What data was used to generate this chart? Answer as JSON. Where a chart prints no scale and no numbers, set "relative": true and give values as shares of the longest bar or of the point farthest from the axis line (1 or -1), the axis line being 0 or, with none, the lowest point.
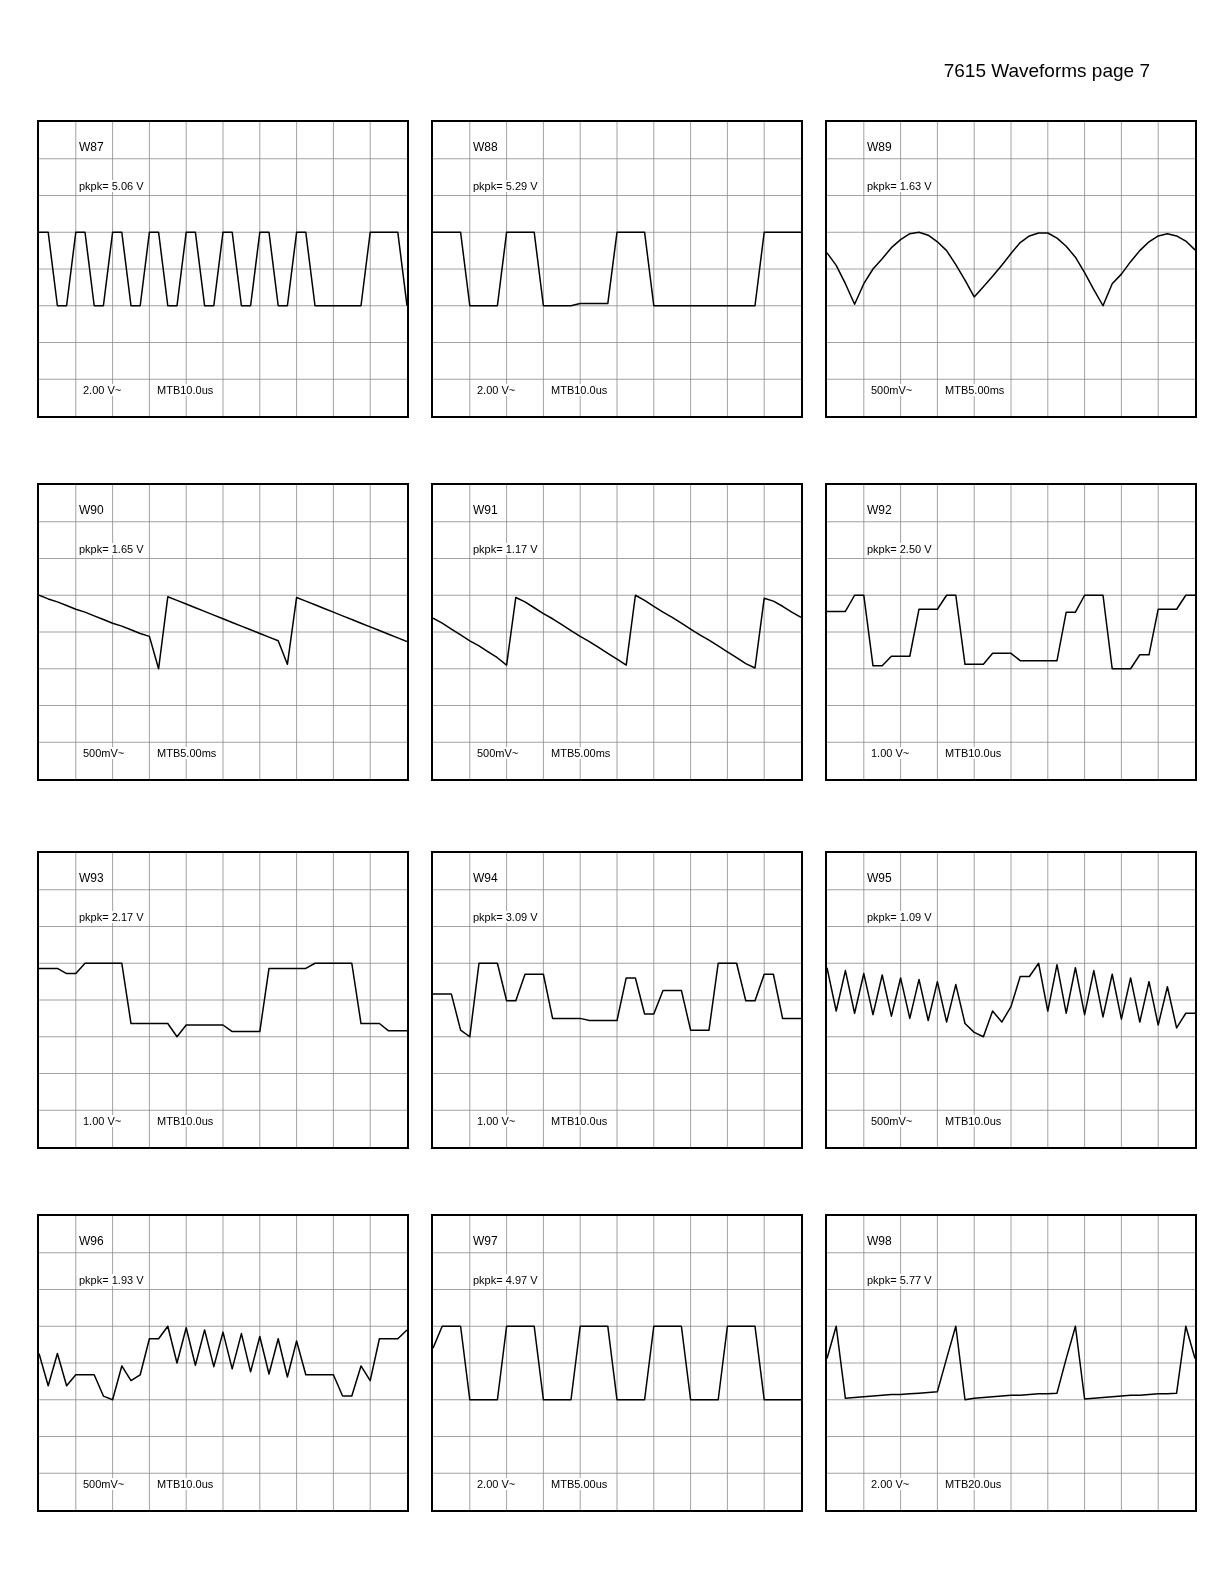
{
  "chart_data": [
    {
      "type": "line",
      "title": "W87",
      "annotations": [
        "pkpk= 5.06 V",
        "2.00 V~",
        "MTB10.0us"
      ],
      "relative": true,
      "grid": true,
      "tick_labels": false,
      "color": "#000000",
      "categories": [
        null,
        null,
        null,
        null,
        null,
        null,
        null,
        null,
        null,
        null,
        null,
        null,
        null,
        null,
        null,
        null,
        null,
        null,
        null,
        null,
        null,
        null,
        null,
        null,
        null,
        null,
        null,
        null,
        null,
        null,
        null,
        null,
        null,
        null,
        null,
        null,
        null,
        null,
        null,
        null,
        null
      ],
      "values": [
        1,
        1,
        0,
        0,
        1,
        1,
        0,
        0,
        1,
        1,
        0,
        0,
        1,
        1,
        0,
        0,
        1,
        1,
        0,
        0,
        1,
        1,
        0,
        0,
        1,
        1,
        0,
        0,
        1,
        1,
        0,
        0,
        0,
        0,
        0,
        0,
        1,
        1,
        1,
        1,
        0
      ]
    },
    {
      "type": "line",
      "title": "W88",
      "annotations": [
        "pkpk= 5.29 V",
        "2.00 V~",
        "MTB10.0us"
      ],
      "relative": true,
      "grid": true,
      "tick_labels": false,
      "color": "#000000",
      "categories": [
        null,
        null,
        null,
        null,
        null,
        null,
        null,
        null,
        null,
        null,
        null,
        null,
        null,
        null,
        null,
        null,
        null,
        null,
        null,
        null,
        null,
        null,
        null,
        null,
        null,
        null,
        null,
        null,
        null,
        null,
        null,
        null,
        null,
        null,
        null,
        null,
        null,
        null,
        null,
        null,
        null
      ],
      "values": [
        1,
        1,
        1,
        1,
        0,
        0,
        0,
        0,
        1,
        1,
        1,
        1,
        0,
        0,
        0,
        0,
        0.03,
        0.03,
        0.03,
        0.03,
        1,
        1,
        1,
        1,
        0,
        0,
        0,
        0,
        0,
        0,
        0,
        0,
        0,
        0,
        0,
        0,
        1,
        1,
        1,
        1,
        1
      ]
    },
    {
      "type": "line",
      "title": "W89",
      "annotations": [
        "pkpk= 1.63 V",
        "500mV~",
        "MTB5.00ms"
      ],
      "relative": true,
      "grid": true,
      "tick_labels": false,
      "color": "#000000",
      "categories": [
        null,
        null,
        null,
        null,
        null,
        null,
        null,
        null,
        null,
        null,
        null,
        null,
        null,
        null,
        null,
        null,
        null,
        null,
        null,
        null,
        null,
        null,
        null,
        null,
        null,
        null,
        null,
        null,
        null,
        null,
        null,
        null,
        null,
        null,
        null,
        null,
        null,
        null,
        null,
        null,
        null
      ],
      "values": [
        0.72,
        0.55,
        0.3,
        0.02,
        0.3,
        0.5,
        0.64,
        0.79,
        0.9,
        0.98,
        1,
        0.96,
        0.87,
        0.75,
        0.56,
        0.35,
        0.12,
        0.26,
        0.4,
        0.55,
        0.71,
        0.86,
        0.95,
        0.99,
        0.99,
        0.92,
        0.81,
        0.66,
        0.45,
        0.22,
        0,
        0.3,
        0.43,
        0.6,
        0.75,
        0.87,
        0.95,
        0.98,
        0.95,
        0.88,
        0.76
      ]
    },
    {
      "type": "line",
      "title": "W90",
      "annotations": [
        "pkpk= 1.65 V",
        "500mV~",
        "MTB5.00ms"
      ],
      "relative": true,
      "grid": true,
      "tick_labels": false,
      "color": "#000000",
      "categories": [
        null,
        null,
        null,
        null,
        null,
        null,
        null,
        null,
        null,
        null,
        null,
        null,
        null,
        null,
        null,
        null,
        null,
        null,
        null,
        null,
        null,
        null,
        null,
        null,
        null,
        null,
        null,
        null,
        null,
        null,
        null,
        null,
        null,
        null,
        null,
        null,
        null,
        null,
        null,
        null,
        null
      ],
      "values": [
        1,
        0.95,
        0.91,
        0.86,
        0.81,
        0.77,
        0.72,
        0.67,
        0.62,
        0.58,
        0.53,
        0.48,
        0.44,
        0,
        0.98,
        0.93,
        0.88,
        0.83,
        0.78,
        0.73,
        0.68,
        0.63,
        0.58,
        0.53,
        0.48,
        0.43,
        0.38,
        0.06,
        0.97,
        0.92,
        0.87,
        0.82,
        0.77,
        0.72,
        0.67,
        0.62,
        0.57,
        0.52,
        0.47,
        0.42,
        0.37
      ]
    },
    {
      "type": "line",
      "title": "W91",
      "annotations": [
        "pkpk= 1.17 V",
        "500mV~",
        "MTB5.00ms"
      ],
      "relative": true,
      "grid": true,
      "tick_labels": false,
      "color": "#000000",
      "categories": [
        null,
        null,
        null,
        null,
        null,
        null,
        null,
        null,
        null,
        null,
        null,
        null,
        null,
        null,
        null,
        null,
        null,
        null,
        null,
        null,
        null,
        null,
        null,
        null,
        null,
        null,
        null,
        null,
        null,
        null,
        null,
        null,
        null,
        null,
        null,
        null,
        null,
        null,
        null,
        null,
        null
      ],
      "values": [
        0.69,
        0.62,
        0.54,
        0.46,
        0.38,
        0.31,
        0.23,
        0.15,
        0.05,
        0.97,
        0.91,
        0.83,
        0.75,
        0.68,
        0.6,
        0.52,
        0.44,
        0.37,
        0.29,
        0.21,
        0.13,
        0.05,
        1,
        0.93,
        0.85,
        0.77,
        0.7,
        0.62,
        0.54,
        0.46,
        0.39,
        0.31,
        0.23,
        0.15,
        0.07,
        0.01,
        0.96,
        0.92,
        0.85,
        0.77,
        0.7
      ]
    },
    {
      "type": "line",
      "title": "W92",
      "annotations": [
        "pkpk= 2.50 V",
        "1.00 V~",
        "MTB10.0us"
      ],
      "relative": true,
      "grid": true,
      "tick_labels": false,
      "color": "#000000",
      "categories": [
        null,
        null,
        null,
        null,
        null,
        null,
        null,
        null,
        null,
        null,
        null,
        null,
        null,
        null,
        null,
        null,
        null,
        null,
        null,
        null,
        null,
        null,
        null,
        null,
        null,
        null,
        null,
        null,
        null,
        null,
        null,
        null,
        null,
        null,
        null,
        null,
        null,
        null,
        null,
        null,
        null
      ],
      "values": [
        0.78,
        0.78,
        0.78,
        1,
        1,
        0.04,
        0.04,
        0.17,
        0.17,
        0.17,
        0.81,
        0.81,
        0.81,
        1,
        1,
        0.06,
        0.06,
        0.06,
        0.21,
        0.21,
        0.21,
        0.11,
        0.11,
        0.11,
        0.11,
        0.11,
        0.77,
        0.77,
        1,
        1,
        1,
        0,
        0,
        0,
        0.19,
        0.19,
        0.81,
        0.81,
        0.81,
        1,
        1
      ]
    },
    {
      "type": "line",
      "title": "W93",
      "annotations": [
        "pkpk= 2.17 V",
        "1.00 V~",
        "MTB10.0us"
      ],
      "relative": true,
      "grid": true,
      "tick_labels": false,
      "color": "#000000",
      "categories": [
        null,
        null,
        null,
        null,
        null,
        null,
        null,
        null,
        null,
        null,
        null,
        null,
        null,
        null,
        null,
        null,
        null,
        null,
        null,
        null,
        null,
        null,
        null,
        null,
        null,
        null,
        null,
        null,
        null,
        null,
        null,
        null,
        null,
        null,
        null,
        null,
        null,
        null,
        null,
        null,
        null
      ],
      "values": [
        0.93,
        0.93,
        0.93,
        0.86,
        0.86,
        1,
        1,
        1,
        1,
        1,
        0.18,
        0.18,
        0.18,
        0.18,
        0.18,
        0,
        0.16,
        0.16,
        0.16,
        0.16,
        0.16,
        0.07,
        0.07,
        0.07,
        0.07,
        0.93,
        0.93,
        0.93,
        0.93,
        0.93,
        1,
        1,
        1,
        1,
        1,
        0.18,
        0.18,
        0.18,
        0.08,
        0.08,
        0.08
      ]
    },
    {
      "type": "line",
      "title": "W94",
      "annotations": [
        "pkpk= 3.09 V",
        "1.00 V~",
        "MTB10.0us"
      ],
      "relative": true,
      "grid": true,
      "tick_labels": false,
      "color": "#000000",
      "categories": [
        null,
        null,
        null,
        null,
        null,
        null,
        null,
        null,
        null,
        null,
        null,
        null,
        null,
        null,
        null,
        null,
        null,
        null,
        null,
        null,
        null,
        null,
        null,
        null,
        null,
        null,
        null,
        null,
        null,
        null,
        null,
        null,
        null,
        null,
        null,
        null,
        null,
        null,
        null,
        null,
        null
      ],
      "values": [
        0.58,
        0.58,
        0.58,
        0.09,
        0,
        1,
        1,
        1,
        0.49,
        0.49,
        0.85,
        0.85,
        0.85,
        0.25,
        0.25,
        0.25,
        0.25,
        0.22,
        0.22,
        0.22,
        0.22,
        0.8,
        0.8,
        0.31,
        0.31,
        0.63,
        0.63,
        0.63,
        0.09,
        0.09,
        0.09,
        1,
        1,
        1,
        0.49,
        0.49,
        0.85,
        0.85,
        0.25,
        0.25,
        0.25
      ]
    },
    {
      "type": "line",
      "title": "W95",
      "annotations": [
        "pkpk= 1.09 V",
        "500mV~",
        "MTB10.0us"
      ],
      "relative": true,
      "grid": true,
      "tick_labels": false,
      "color": "#000000",
      "categories": [
        null,
        null,
        null,
        null,
        null,
        null,
        null,
        null,
        null,
        null,
        null,
        null,
        null,
        null,
        null,
        null,
        null,
        null,
        null,
        null,
        null,
        null,
        null,
        null,
        null,
        null,
        null,
        null,
        null,
        null,
        null,
        null,
        null,
        null,
        null,
        null,
        null,
        null,
        null,
        null,
        null
      ],
      "values": [
        0.94,
        0.35,
        0.9,
        0.32,
        0.86,
        0.3,
        0.84,
        0.28,
        0.8,
        0.25,
        0.78,
        0.22,
        0.75,
        0.2,
        0.71,
        0.18,
        0.06,
        0,
        0.35,
        0.2,
        0.41,
        0.82,
        0.82,
        1,
        0.35,
        0.98,
        0.32,
        0.94,
        0.3,
        0.9,
        0.27,
        0.85,
        0.24,
        0.8,
        0.2,
        0.75,
        0.16,
        0.68,
        0.12,
        0.32,
        0.32
      ]
    },
    {
      "type": "line",
      "title": "W96",
      "annotations": [
        "pkpk= 1.93 V",
        "500mV~",
        "MTB10.0us"
      ],
      "relative": true,
      "grid": true,
      "tick_labels": false,
      "color": "#000000",
      "categories": [
        null,
        null,
        null,
        null,
        null,
        null,
        null,
        null,
        null,
        null,
        null,
        null,
        null,
        null,
        null,
        null,
        null,
        null,
        null,
        null,
        null,
        null,
        null,
        null,
        null,
        null,
        null,
        null,
        null,
        null,
        null,
        null,
        null,
        null,
        null,
        null,
        null,
        null,
        null,
        null,
        null
      ],
      "values": [
        0.63,
        0.19,
        0.63,
        0.19,
        0.34,
        0.34,
        0.34,
        0.05,
        0,
        0.46,
        0.26,
        0.34,
        0.83,
        0.83,
        1,
        0.5,
        0.98,
        0.47,
        0.95,
        0.45,
        0.92,
        0.42,
        0.9,
        0.38,
        0.86,
        0.35,
        0.83,
        0.31,
        0.8,
        0.34,
        0.34,
        0.34,
        0.34,
        0.05,
        0.05,
        0.46,
        0.26,
        0.83,
        0.83,
        0.83,
        0.95
      ]
    },
    {
      "type": "line",
      "title": "W97",
      "annotations": [
        "pkpk= 4.97 V",
        "2.00 V~",
        "MTB5.00us"
      ],
      "relative": true,
      "grid": true,
      "tick_labels": false,
      "color": "#000000",
      "categories": [
        null,
        null,
        null,
        null,
        null,
        null,
        null,
        null,
        null,
        null,
        null,
        null,
        null,
        null,
        null,
        null,
        null,
        null,
        null,
        null,
        null,
        null,
        null,
        null,
        null,
        null,
        null,
        null,
        null,
        null,
        null,
        null,
        null,
        null,
        null,
        null,
        null,
        null,
        null,
        null,
        null
      ],
      "values": [
        0.7,
        1,
        1,
        1,
        0,
        0,
        0,
        0,
        1,
        1,
        1,
        1,
        0,
        0,
        0,
        0,
        1,
        1,
        1,
        1,
        0,
        0,
        0,
        0,
        1,
        1,
        1,
        1,
        0,
        0,
        0,
        0,
        1,
        1,
        1,
        1,
        0,
        0,
        0,
        0,
        0
      ]
    },
    {
      "type": "line",
      "title": "W98",
      "annotations": [
        "pkpk= 5.77 V",
        "2.00 V~",
        "MTB20.0us"
      ],
      "relative": true,
      "grid": true,
      "tick_labels": false,
      "color": "#000000",
      "categories": [
        null,
        null,
        null,
        null,
        null,
        null,
        null,
        null,
        null,
        null,
        null,
        null,
        null,
        null,
        null,
        null,
        null,
        null,
        null,
        null,
        null,
        null,
        null,
        null,
        null,
        null,
        null,
        null,
        null,
        null,
        null,
        null,
        null,
        null,
        null,
        null,
        null,
        null,
        null,
        null,
        null
      ],
      "values": [
        0.56,
        1,
        0.02,
        0.03,
        0.04,
        0.05,
        0.06,
        0.07,
        0.07,
        0.08,
        0.09,
        0.1,
        0.11,
        0.56,
        1,
        0,
        0.02,
        0.03,
        0.04,
        0.05,
        0.06,
        0.06,
        0.07,
        0.08,
        0.08,
        0.09,
        0.56,
        1,
        0.01,
        0.02,
        0.03,
        0.04,
        0.05,
        0.06,
        0.06,
        0.07,
        0.08,
        0.08,
        0.09,
        1,
        0.56
      ]
    },
    {
      "type": "other",
      "title": "7615 Waveforms page 7"
    }
  ]
}
